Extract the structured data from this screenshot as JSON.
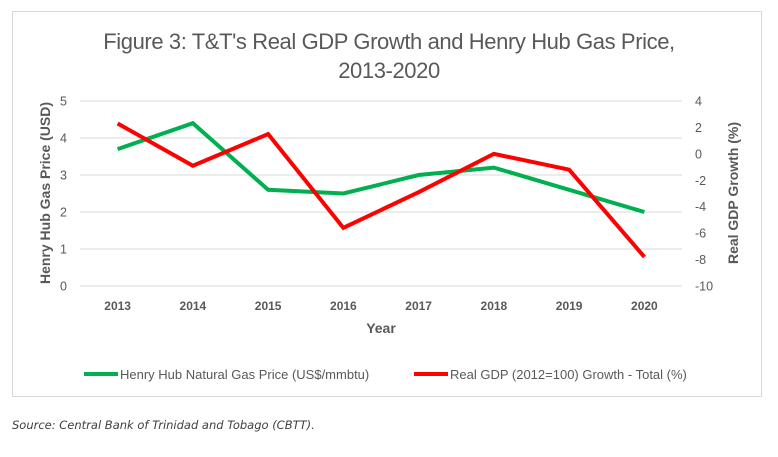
{
  "chart_data": {
    "type": "line",
    "title": "Figure 3: T&T's Real GDP Growth and Henry Hub Gas Price,",
    "title_line2": "2013-2020",
    "xlabel": "Year",
    "ylabel_left": "Henry Hub Gas Price (USD)",
    "ylabel_right": "Real GDP Growth (%)",
    "categories": [
      "2013",
      "2014",
      "2015",
      "2016",
      "2017",
      "2018",
      "2019",
      "2020"
    ],
    "ylim_left": [
      0,
      5
    ],
    "yticks_left": [
      0,
      1,
      2,
      3,
      4,
      5
    ],
    "ylim_right": [
      -10,
      4
    ],
    "yticks_right": [
      -10,
      -8,
      -6,
      -4,
      -2,
      0,
      2,
      4
    ],
    "grid": true,
    "legend_position": "bottom",
    "series": [
      {
        "name": "Henry Hub Natural Gas Price (US$/mmbtu)",
        "axis": "left",
        "color": "#00b050",
        "values": [
          3.7,
          4.4,
          2.6,
          2.5,
          3.0,
          3.2,
          2.6,
          2.0
        ]
      },
      {
        "name": "Real GDP (2012=100) Growth - Total (%)",
        "axis": "right",
        "color": "#ff0000",
        "values": [
          2.3,
          -0.9,
          1.5,
          -5.6,
          -2.9,
          0.0,
          -1.2,
          -7.8
        ]
      }
    ]
  },
  "source": "Source: Central Bank of Trinidad and Tobago (CBTT)."
}
